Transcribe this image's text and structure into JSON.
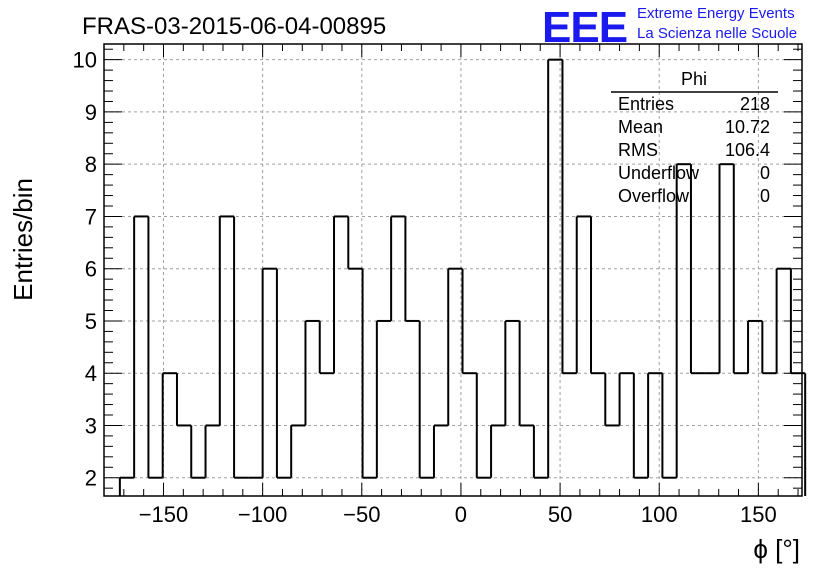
{
  "chart_data": {
    "type": "bar",
    "title": "FRAS-03-2015-06-04-00895",
    "xlabel": "ϕ [°]",
    "ylabel": "Entries/bin",
    "xlim": [
      -180,
      172
    ],
    "ylim": [
      1.65,
      10.3
    ],
    "grid": true,
    "bin_edges_start": -172,
    "bin_width": 7.2,
    "values": [
      2,
      7,
      2,
      4,
      3,
      2,
      3,
      7,
      2,
      2,
      6,
      2,
      3,
      5,
      4,
      7,
      6,
      2,
      5,
      7,
      5,
      2,
      3,
      6,
      4,
      2,
      3,
      5,
      3,
      2,
      10,
      4,
      7,
      4,
      3,
      4,
      2,
      4,
      2,
      8,
      4,
      4,
      8,
      4,
      5,
      4,
      6,
      4
    ],
    "x_ticks": [
      -150,
      -100,
      -50,
      0,
      50,
      100,
      150
    ],
    "x_tick_labels": [
      "−150",
      "−100",
      "−50",
      "0",
      "50",
      "100",
      "150"
    ],
    "y_ticks": [
      2,
      3,
      4,
      5,
      6,
      7,
      8,
      9,
      10
    ],
    "y_tick_labels": [
      "2",
      "3",
      "4",
      "5",
      "6",
      "7",
      "8",
      "9",
      "10"
    ],
    "stats_box": {
      "title": "Phi",
      "rows": [
        {
          "label": "Entries",
          "value": "218"
        },
        {
          "label": "Mean",
          "value": "10.72"
        },
        {
          "label": "RMS",
          "value": "106.4"
        },
        {
          "label": "Underflow",
          "value": "0"
        },
        {
          "label": "Overflow",
          "value": "0"
        }
      ]
    }
  },
  "logo": {
    "mark": "EEE",
    "line1": "Extreme Energy Events",
    "line2": "La Scienza nelle Scuole",
    "color": "#1a1aee"
  },
  "colors": {
    "line": "#000000",
    "grid": "#a0a0a0",
    "logo": "#1a1aee"
  }
}
